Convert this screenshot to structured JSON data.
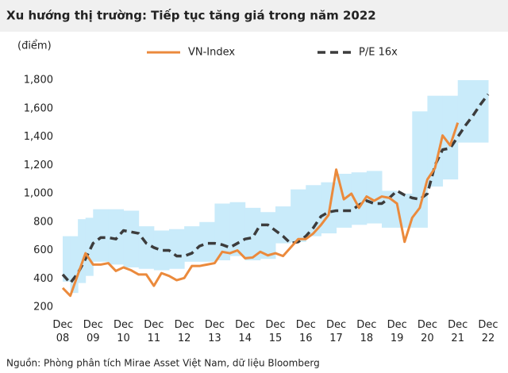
{
  "chart_data": {
    "type": "line",
    "title": "Xu hướng thị trường: Tiếp tục tăng giá trong năm 2022",
    "y_label": "(điểm)",
    "source": "Nguồn: Phòng phân tích Mirae Asset Việt Nam, dữ liệu Bloomberg",
    "xlim": [
      2008.92,
      2022.92
    ],
    "xticks": [
      {
        "value": 2008.92,
        "label": "Dec 08"
      },
      {
        "value": 2009.92,
        "label": "Dec 09"
      },
      {
        "value": 2010.92,
        "label": "Dec 10"
      },
      {
        "value": 2011.92,
        "label": "Dec 11"
      },
      {
        "value": 2012.92,
        "label": "Dec 12"
      },
      {
        "value": 2013.92,
        "label": "Dec 13"
      },
      {
        "value": 2014.92,
        "label": "Dec 14"
      },
      {
        "value": 2015.92,
        "label": "Dec 15"
      },
      {
        "value": 2016.92,
        "label": "Dec 16"
      },
      {
        "value": 2017.92,
        "label": "Dec 17"
      },
      {
        "value": 2018.92,
        "label": "Dec 18"
      },
      {
        "value": 2019.92,
        "label": "Dec 19"
      },
      {
        "value": 2020.92,
        "label": "Dec 20"
      },
      {
        "value": 2021.92,
        "label": "Dec 21"
      },
      {
        "value": 2022.92,
        "label": "Dec 22"
      }
    ],
    "ylim": [
      200,
      1800
    ],
    "yticks": [
      200,
      400,
      600,
      800,
      {
        "value": 1000,
        "label": "1,000"
      },
      {
        "value": 1200,
        "label": "1,200"
      },
      {
        "value": 1400,
        "label": "1,400"
      },
      {
        "value": 1600,
        "label": "1,600"
      },
      {
        "value": 1800,
        "label": "1,800"
      }
    ],
    "band": {
      "color": "#c9ebfa",
      "x": [
        2008.92,
        2009.17,
        2009.42,
        2009.67,
        2009.92,
        2010.42,
        2010.92,
        2011.42,
        2011.92,
        2012.42,
        2012.92,
        2013.42,
        2013.92,
        2014.42,
        2014.92,
        2015.42,
        2015.92,
        2016.42,
        2016.92,
        2017.42,
        2017.92,
        2018.42,
        2018.92,
        2019.42,
        2019.92,
        2020.42,
        2020.92,
        2021.42,
        2021.92
      ],
      "low": [
        380,
        300,
        370,
        420,
        520,
        500,
        480,
        470,
        460,
        470,
        520,
        520,
        530,
        560,
        530,
        540,
        650,
        660,
        700,
        720,
        760,
        780,
        790,
        760,
        760,
        760,
        1050,
        1100,
        1360
      ],
      "high": [
        700,
        700,
        820,
        830,
        890,
        890,
        880,
        770,
        740,
        750,
        770,
        800,
        930,
        940,
        900,
        870,
        910,
        1030,
        1060,
        1080,
        1140,
        1150,
        1160,
        1020,
        1000,
        1580,
        1690,
        1690,
        1800
      ]
    },
    "x": [
      2008.92,
      2009.17,
      2009.42,
      2009.67,
      2009.92,
      2010.17,
      2010.42,
      2010.67,
      2010.92,
      2011.17,
      2011.42,
      2011.67,
      2011.92,
      2012.17,
      2012.42,
      2012.67,
      2012.92,
      2013.17,
      2013.42,
      2013.67,
      2013.92,
      2014.17,
      2014.42,
      2014.67,
      2014.92,
      2015.17,
      2015.42,
      2015.67,
      2015.92,
      2016.17,
      2016.42,
      2016.67,
      2016.92,
      2017.17,
      2017.42,
      2017.67,
      2017.92,
      2018.17,
      2018.42,
      2018.67,
      2018.92,
      2019.17,
      2019.42,
      2019.67,
      2019.92,
      2020.17,
      2020.42,
      2020.67,
      2020.92,
      2021.17,
      2021.42,
      2021.67,
      2021.92,
      2022.17,
      2022.42,
      2022.67,
      2022.92
    ],
    "series": [
      {
        "name": "VN-Index",
        "color": "#eb8a3c",
        "dashed": false,
        "values": [
          335,
          280,
          430,
          580,
          500,
          500,
          510,
          455,
          480,
          460,
          430,
          430,
          350,
          440,
          420,
          390,
          405,
          490,
          490,
          500,
          510,
          590,
          580,
          600,
          545,
          550,
          590,
          565,
          580,
          560,
          620,
          680,
          680,
          720,
          780,
          850,
          1170,
          960,
          1000,
          900,
          980,
          950,
          980,
          970,
          930,
          660,
          830,
          900,
          1100,
          1180,
          1410,
          1340,
          1500,
          null,
          null,
          null,
          null
        ]
      },
      {
        "name": "P/E 16x",
        "color": "#3c3c3c",
        "dashed": true,
        "values": [
          430,
          370,
          440,
          540,
          650,
          690,
          690,
          680,
          740,
          730,
          720,
          650,
          620,
          600,
          600,
          560,
          560,
          580,
          630,
          650,
          650,
          640,
          620,
          650,
          680,
          690,
          780,
          780,
          740,
          700,
          650,
          660,
          700,
          760,
          840,
          870,
          880,
          880,
          880,
          920,
          950,
          930,
          930,
          970,
          1020,
          990,
          970,
          960,
          1000,
          1200,
          1310,
          1320,
          1400,
          1480,
          1550,
          1630,
          1700
        ]
      }
    ]
  }
}
